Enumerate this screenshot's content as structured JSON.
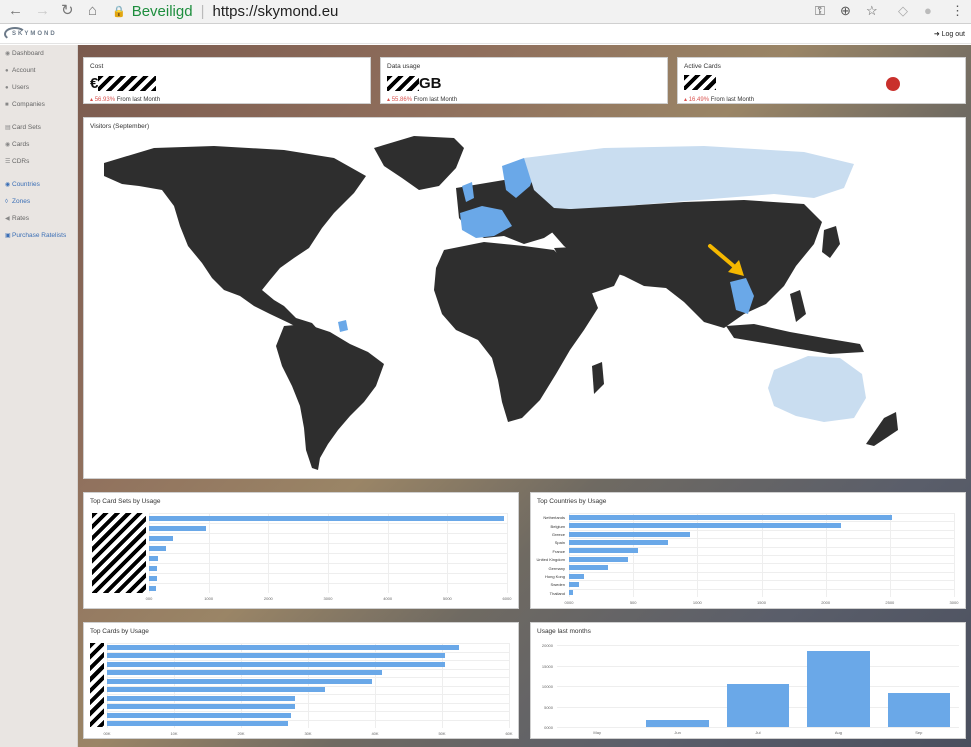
{
  "browser": {
    "secure_label": "Beveiligd",
    "url": "https://skymond.eu"
  },
  "app": {
    "logo_text": "SKYMOND",
    "logout_label": "Log out"
  },
  "sidebar": {
    "items": [
      {
        "label": "Dashboard",
        "icon": "dashboard-icon"
      },
      {
        "label": "Account",
        "icon": "account-icon"
      },
      {
        "label": "Users",
        "icon": "users-icon"
      },
      {
        "label": "Companies",
        "icon": "companies-icon"
      },
      {
        "label": "Card Sets",
        "icon": "card-sets-icon"
      },
      {
        "label": "Cards",
        "icon": "cards-icon"
      },
      {
        "label": "CDRs",
        "icon": "cdrs-icon"
      },
      {
        "label": "Countries",
        "icon": "countries-icon"
      },
      {
        "label": "Zones",
        "icon": "zones-icon"
      },
      {
        "label": "Rates",
        "icon": "rates-icon"
      },
      {
        "label": "Purchase Ratelists",
        "icon": "purchase-ratelists-icon"
      }
    ]
  },
  "kpis": {
    "cost": {
      "title": "Cost",
      "prefix": "€",
      "pct": "56.93%",
      "sub": "From last Month"
    },
    "data": {
      "title": "Data usage",
      "suffix": "GB",
      "pct": "55.86%",
      "sub": "From last Month"
    },
    "cards": {
      "title": "Active Cards",
      "pct": "16.49%",
      "sub": "From last Month"
    }
  },
  "map": {
    "title": "Visitors (September)",
    "colors": {
      "land": "#2e2e2e",
      "light": "#c9ddf0",
      "mid": "#6aa8e8",
      "arrow": "#f5b800"
    }
  },
  "top_card_sets": {
    "title": "Top Card Sets by Usage",
    "ticks": [
      "000",
      "1000",
      "2000",
      "3000",
      "4000",
      "5000",
      "6000"
    ],
    "values": [
      5950,
      960,
      400,
      280,
      150,
      140,
      130,
      110
    ]
  },
  "top_countries": {
    "title": "Top Countries by Usage",
    "labels": [
      "Netherlands",
      "Belgium",
      "Greece",
      "Spain",
      "France",
      "United Kingdom",
      "Germany",
      "Hong Kong",
      "Sweden",
      "Thailand"
    ],
    "values": [
      2520,
      2120,
      940,
      770,
      540,
      460,
      300,
      120,
      80,
      30
    ],
    "ticks": [
      "0000",
      "500",
      "1000",
      "1500",
      "2000",
      "2500",
      "3000"
    ]
  },
  "top_cards": {
    "title": "Top Cards by Usage",
    "ticks": [
      "00K",
      "10K",
      "20K",
      "30K",
      "40K",
      "50K",
      "60K"
    ],
    "values": [
      52500,
      50500,
      50500,
      41000,
      39500,
      32500,
      28000,
      28000,
      27500,
      27000
    ]
  },
  "usage_months": {
    "title": "Usage last months",
    "categories": [
      "May",
      "Jun",
      "Jul",
      "Aug",
      "Sep"
    ],
    "values": [
      0,
      1700,
      10500,
      18500,
      8200
    ],
    "yticks": [
      "20000",
      "15000",
      "10000",
      "5000",
      "0000"
    ]
  }
}
